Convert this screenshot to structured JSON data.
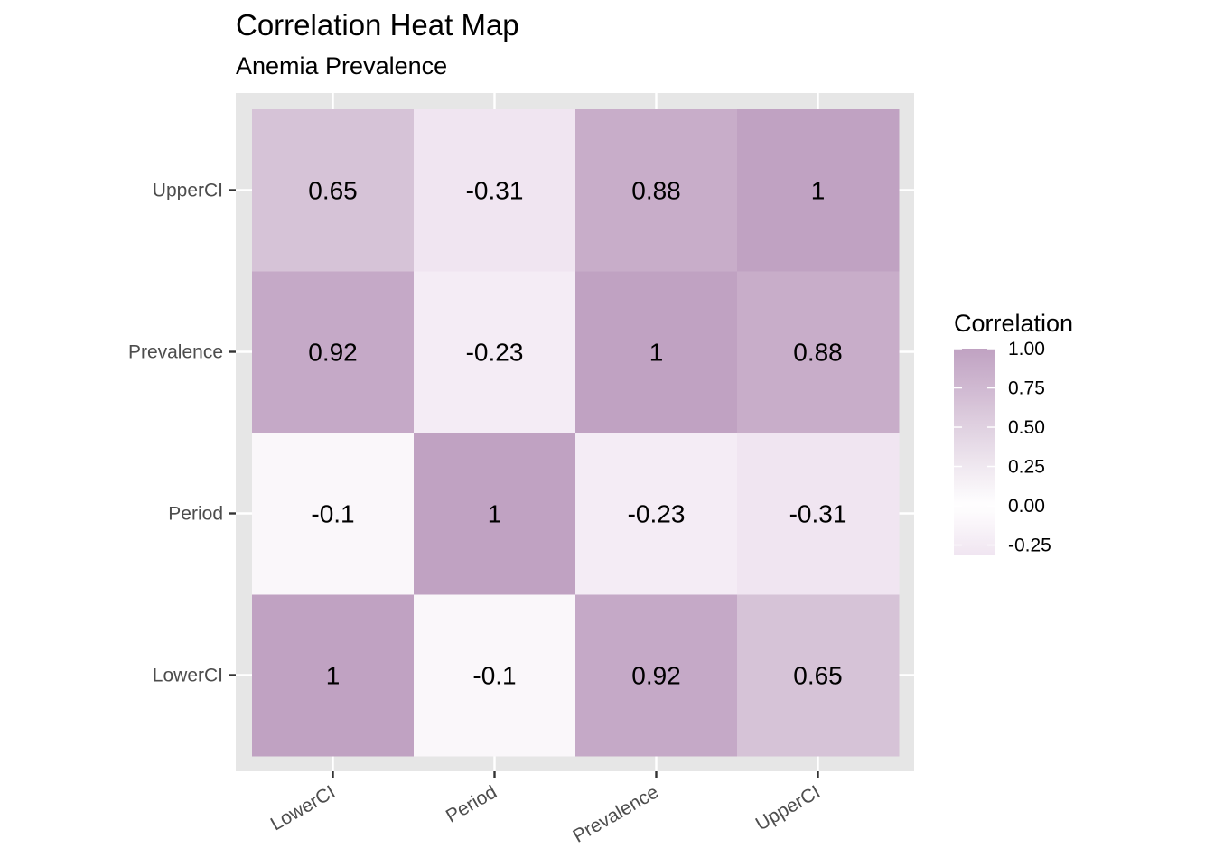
{
  "chart_data": {
    "type": "heatmap",
    "title": "Correlation Heat Map",
    "subtitle": "Anemia Prevalence",
    "xlabel": "",
    "ylabel": "",
    "x_categories": [
      "LowerCI",
      "Period",
      "Prevalence",
      "UpperCI"
    ],
    "y_categories": [
      "LowerCI",
      "Period",
      "Prevalence",
      "UpperCI"
    ],
    "matrix": [
      [
        1,
        -0.1,
        0.92,
        0.65
      ],
      [
        -0.1,
        1,
        -0.23,
        -0.31
      ],
      [
        0.92,
        -0.23,
        1,
        0.88
      ],
      [
        0.65,
        -0.31,
        0.88,
        1
      ]
    ],
    "legend": {
      "title": "Correlation",
      "ticks": [
        1.0,
        0.75,
        0.5,
        0.25,
        0.0,
        -0.25
      ],
      "tick_labels": [
        "1.00",
        "0.75",
        "0.50",
        "0.25",
        "0.00",
        "-0.25"
      ],
      "range": [
        -0.31,
        1
      ],
      "placement": "right"
    },
    "colors": {
      "low": "#F0E5F1",
      "mid": "#FFFFFF",
      "high": "#C0A2C2",
      "panel_background": "#E6E6E6",
      "grid": "#FFFFFF"
    },
    "x_tick_rotation_deg": 30,
    "grid": true
  }
}
